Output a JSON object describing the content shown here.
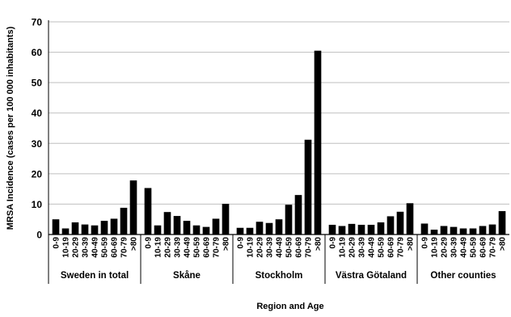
{
  "chart_data": {
    "type": "bar",
    "title": "",
    "xlabel": "Region and Age",
    "ylabel": "MRSA Incidence (cases per 100 000 inhabitants)",
    "ylim": [
      0,
      70
    ],
    "yticks": [
      0,
      10,
      20,
      30,
      40,
      50,
      60,
      70
    ],
    "grid": "horizontal",
    "legend": "none",
    "bar_color": "#000000",
    "groups": [
      {
        "name": "Sweden in total",
        "categories": [
          "0-9",
          "10-19",
          "20-29",
          "30-39",
          "40-49",
          "50-59",
          "60-69",
          "70-79",
          ">80"
        ],
        "values": [
          5.0,
          2.0,
          4.0,
          3.3,
          3.0,
          4.5,
          5.2,
          8.8,
          17.8
        ]
      },
      {
        "name": "Skåne",
        "categories": [
          "0-9",
          "10-19",
          "20-29",
          "30-39",
          "40-49",
          "50-59",
          "60-69",
          "70-79",
          ">80"
        ],
        "values": [
          15.3,
          3.0,
          7.4,
          6.1,
          4.5,
          3.0,
          2.5,
          5.2,
          10.1
        ]
      },
      {
        "name": "Stockholm",
        "categories": [
          "0-9",
          "10-19",
          "20-29",
          "30-39",
          "40-49",
          "50-59",
          "60-69",
          "70-79",
          ">80"
        ],
        "values": [
          2.2,
          2.2,
          4.2,
          3.8,
          5.0,
          9.8,
          13.0,
          31.2,
          60.5
        ]
      },
      {
        "name": "Västra Götaland",
        "categories": [
          "0-9",
          "10-19",
          "20-29",
          "30-39",
          "40-49",
          "50-59",
          "60-69",
          "70-79",
          ">80"
        ],
        "values": [
          3.2,
          2.8,
          3.5,
          3.2,
          3.2,
          4.0,
          6.0,
          7.5,
          10.3
        ]
      },
      {
        "name": "Other counties",
        "categories": [
          "0-9",
          "10-19",
          "20-29",
          "30-39",
          "40-49",
          "50-59",
          "60-69",
          "70-79",
          ">80"
        ],
        "values": [
          3.6,
          1.6,
          2.8,
          2.5,
          2.0,
          2.0,
          2.8,
          3.3,
          7.7
        ]
      }
    ]
  }
}
